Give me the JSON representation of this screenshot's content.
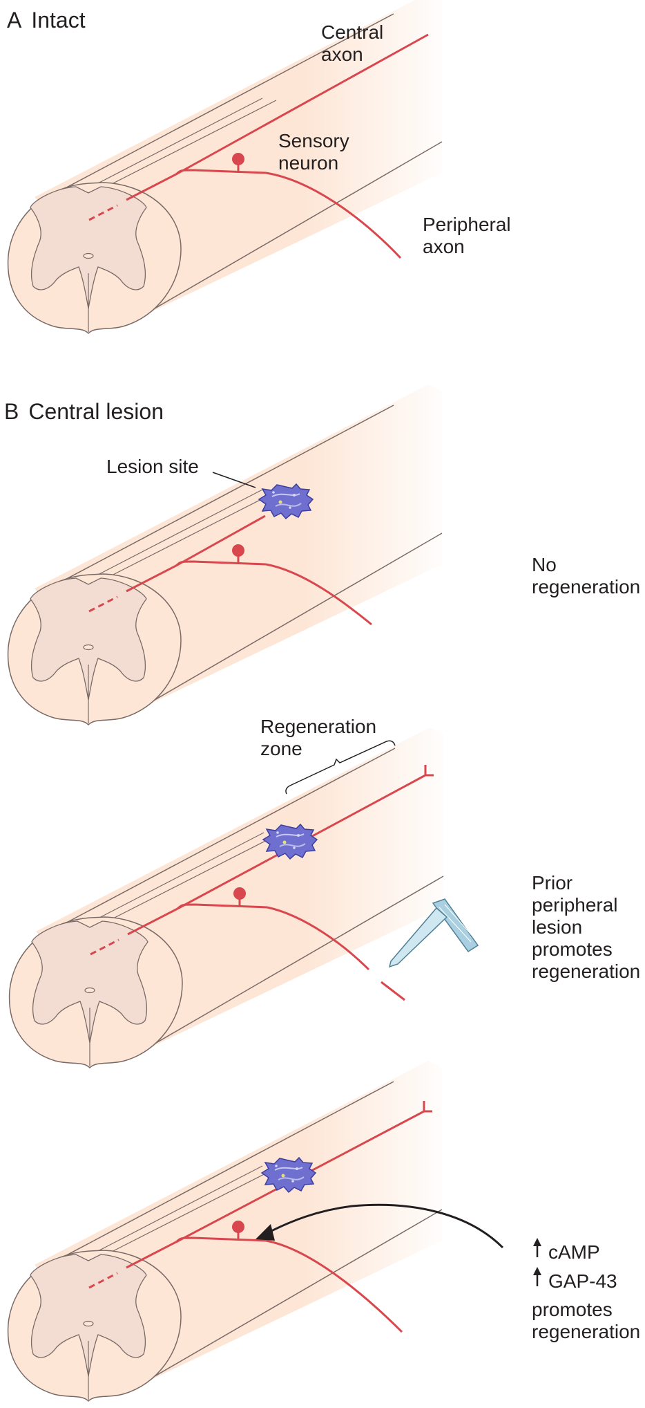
{
  "panel_a": {
    "letter": "A",
    "title": "Intact",
    "labels": {
      "central_axon": [
        "Central",
        "axon"
      ],
      "sensory_neuron": [
        "Sensory",
        "neuron"
      ],
      "peripheral_axon": [
        "Peripheral",
        "axon"
      ]
    }
  },
  "panel_b": {
    "letter": "B",
    "title": "Central lesion",
    "lesion_site": "Lesion site",
    "regeneration_zone": [
      "Regeneration",
      "zone"
    ],
    "outcome_1": [
      "No",
      "regeneration"
    ],
    "outcome_2": [
      "Prior",
      "peripheral",
      "lesion",
      "promotes",
      "regeneration"
    ],
    "outcome_3": {
      "markers": [
        "cAMP",
        "GAP-43"
      ],
      "text": [
        "promotes",
        "regeneration"
      ]
    }
  },
  "colors": {
    "cord_fill": "#fde6d6",
    "gray_matter": "#f3ddd2",
    "outline": "#7a6a66",
    "axon": "#d9474e",
    "lesion": "#6f6fcf",
    "lesion_edge": "#3d3d9e",
    "scalpel": "#a9cfe0"
  },
  "icons": {
    "lesion": "lesion-blob-icon",
    "scalpel": "scalpel-icon",
    "arrow": "up-arrow-icon"
  }
}
